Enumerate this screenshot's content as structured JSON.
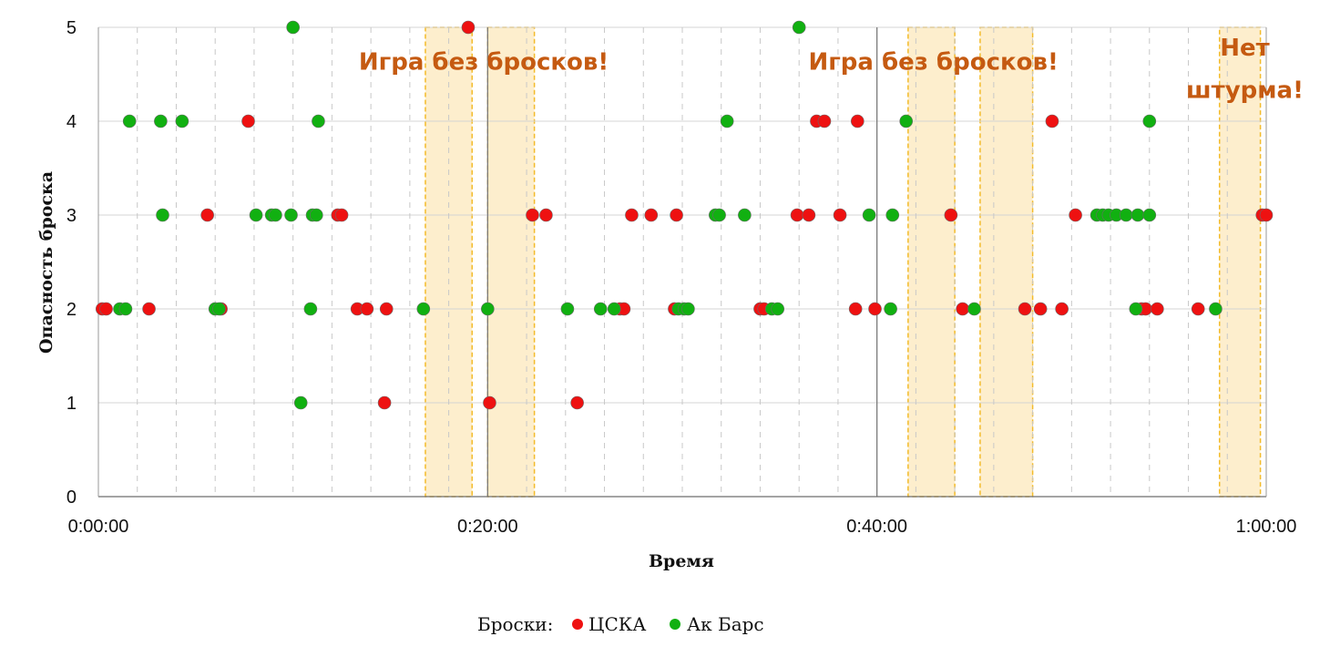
{
  "chart_data": {
    "type": "scatter",
    "xlabel": "Время",
    "ylabel": "Опасность броска",
    "xlim": [
      0,
      60
    ],
    "ylim": [
      0,
      5
    ],
    "x_unit": "minutes",
    "x_ticks": [
      {
        "v": 0,
        "label": "0:00:00"
      },
      {
        "v": 20,
        "label": "0:20:00"
      },
      {
        "v": 40,
        "label": "0:40:00"
      },
      {
        "v": 60,
        "label": "1:00:00"
      }
    ],
    "y_ticks": [
      {
        "v": 0,
        "label": "0"
      },
      {
        "v": 1,
        "label": "1"
      },
      {
        "v": 2,
        "label": "2"
      },
      {
        "v": 3,
        "label": "3"
      },
      {
        "v": 4,
        "label": "4"
      },
      {
        "v": 5,
        "label": "5"
      }
    ],
    "legend": {
      "prefix": "Броски:",
      "placement": "bottom"
    },
    "series": [
      {
        "name": "ЦСКА",
        "color": "#ee1111",
        "points": [
          [
            0.2,
            2
          ],
          [
            0.4,
            2
          ],
          [
            2.6,
            2
          ],
          [
            5.6,
            3
          ],
          [
            6.3,
            2
          ],
          [
            7.7,
            4
          ],
          [
            12.3,
            3
          ],
          [
            12.5,
            3
          ],
          [
            13.3,
            2
          ],
          [
            13.8,
            2
          ],
          [
            14.8,
            2
          ],
          [
            14.7,
            1
          ],
          [
            19.0,
            5
          ],
          [
            20.1,
            1
          ],
          [
            22.3,
            3
          ],
          [
            23.0,
            3
          ],
          [
            24.6,
            1
          ],
          [
            26.8,
            2
          ],
          [
            27.0,
            2
          ],
          [
            27.4,
            3
          ],
          [
            28.4,
            3
          ],
          [
            29.6,
            2
          ],
          [
            29.7,
            3
          ],
          [
            34.0,
            2
          ],
          [
            34.2,
            2
          ],
          [
            35.9,
            3
          ],
          [
            36.5,
            3
          ],
          [
            36.9,
            4
          ],
          [
            37.3,
            4
          ],
          [
            38.1,
            3
          ],
          [
            38.9,
            2
          ],
          [
            39.0,
            4
          ],
          [
            39.9,
            2
          ],
          [
            43.8,
            3
          ],
          [
            44.4,
            2
          ],
          [
            47.6,
            2
          ],
          [
            48.4,
            2
          ],
          [
            49.0,
            4
          ],
          [
            49.5,
            2
          ],
          [
            50.2,
            3
          ],
          [
            53.6,
            2
          ],
          [
            53.8,
            2
          ],
          [
            54.4,
            2
          ],
          [
            56.5,
            2
          ],
          [
            59.8,
            3
          ],
          [
            60.0,
            3
          ]
        ]
      },
      {
        "name": "Ак Барс",
        "color": "#11b011",
        "points": [
          [
            1.1,
            2
          ],
          [
            1.4,
            2
          ],
          [
            1.6,
            4
          ],
          [
            3.2,
            4
          ],
          [
            3.3,
            3
          ],
          [
            4.3,
            4
          ],
          [
            6.0,
            2
          ],
          [
            6.2,
            2
          ],
          [
            8.1,
            3
          ],
          [
            8.9,
            3
          ],
          [
            9.1,
            3
          ],
          [
            9.9,
            3
          ],
          [
            10.0,
            5
          ],
          [
            10.4,
            1
          ],
          [
            10.9,
            2
          ],
          [
            11.0,
            3
          ],
          [
            11.2,
            3
          ],
          [
            11.3,
            4
          ],
          [
            16.7,
            2
          ],
          [
            20.0,
            2
          ],
          [
            24.1,
            2
          ],
          [
            25.8,
            2
          ],
          [
            26.5,
            2
          ],
          [
            31.7,
            3
          ],
          [
            31.9,
            3
          ],
          [
            32.3,
            4
          ],
          [
            33.2,
            3
          ],
          [
            29.8,
            2
          ],
          [
            30.1,
            2
          ],
          [
            30.3,
            2
          ],
          [
            34.6,
            2
          ],
          [
            34.9,
            2
          ],
          [
            36.0,
            5
          ],
          [
            39.6,
            3
          ],
          [
            40.8,
            3
          ],
          [
            40.7,
            2
          ],
          [
            41.5,
            4
          ],
          [
            45.0,
            2
          ],
          [
            51.3,
            3
          ],
          [
            51.6,
            3
          ],
          [
            51.9,
            3
          ],
          [
            52.3,
            3
          ],
          [
            52.8,
            3
          ],
          [
            53.3,
            2
          ],
          [
            53.4,
            3
          ],
          [
            54.0,
            4
          ],
          [
            54.0,
            3
          ],
          [
            57.4,
            2
          ]
        ]
      }
    ],
    "bands": [
      {
        "from": 16.8,
        "to": 19.2
      },
      {
        "from": 20.0,
        "to": 22.4
      },
      {
        "from": 41.6,
        "to": 44.0
      },
      {
        "from": 45.3,
        "to": 48.0
      },
      {
        "from": 57.6,
        "to": 59.7
      }
    ],
    "annotations": [
      {
        "text": "Игра без бросков!",
        "x": 19.8,
        "y": 4.55
      },
      {
        "text": "Игра без бросков!",
        "x": 42.9,
        "y": 4.55
      },
      {
        "text": "Нет",
        "x": 58.9,
        "y": 4.7
      },
      {
        "text": "штурма!",
        "x": 58.9,
        "y": 4.25
      }
    ],
    "grid": {
      "horizontal": true,
      "vertical_dashed": true
    }
  }
}
